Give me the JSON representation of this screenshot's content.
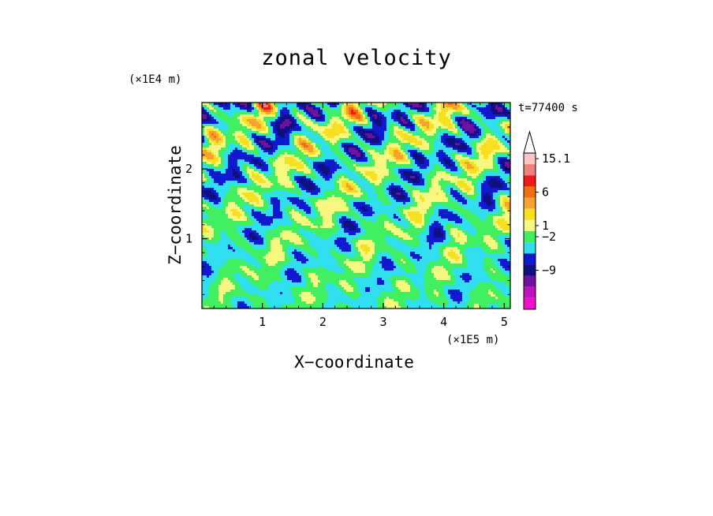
{
  "chart_data": {
    "type": "heatmap",
    "title": "zonal velocity",
    "xlabel": "X−coordinate",
    "ylabel": "Z−coordinate",
    "x_unit": "(×1E5 m)",
    "z_unit": "(×1E4 m)",
    "time_label": "t=77400 s",
    "xlim": [
      0,
      5.1
    ],
    "ylim": [
      0,
      2.95
    ],
    "x_ticks": [
      "1",
      "2",
      "3",
      "4",
      "5"
    ],
    "y_ticks": [
      "1",
      "2"
    ],
    "colorbar": {
      "labels": [
        "15.1",
        "6",
        "1",
        "−2",
        "−9"
      ],
      "levels_top_to_bottom": [
        {
          "color": "#f8c8c8"
        },
        {
          "color": "#f08080"
        },
        {
          "color": "#f01818"
        },
        {
          "color": "#f07010"
        },
        {
          "color": "#f8a030"
        },
        {
          "color": "#f8e020"
        },
        {
          "color": "#f8f880"
        },
        {
          "color": "#40f060"
        },
        {
          "color": "#30e0f0"
        },
        {
          "color": "#1018d0"
        },
        {
          "color": "#101080"
        },
        {
          "color": "#7010a0"
        },
        {
          "color": "#c010c0"
        },
        {
          "color": "#f010d0"
        }
      ],
      "extend_max": true
    }
  }
}
